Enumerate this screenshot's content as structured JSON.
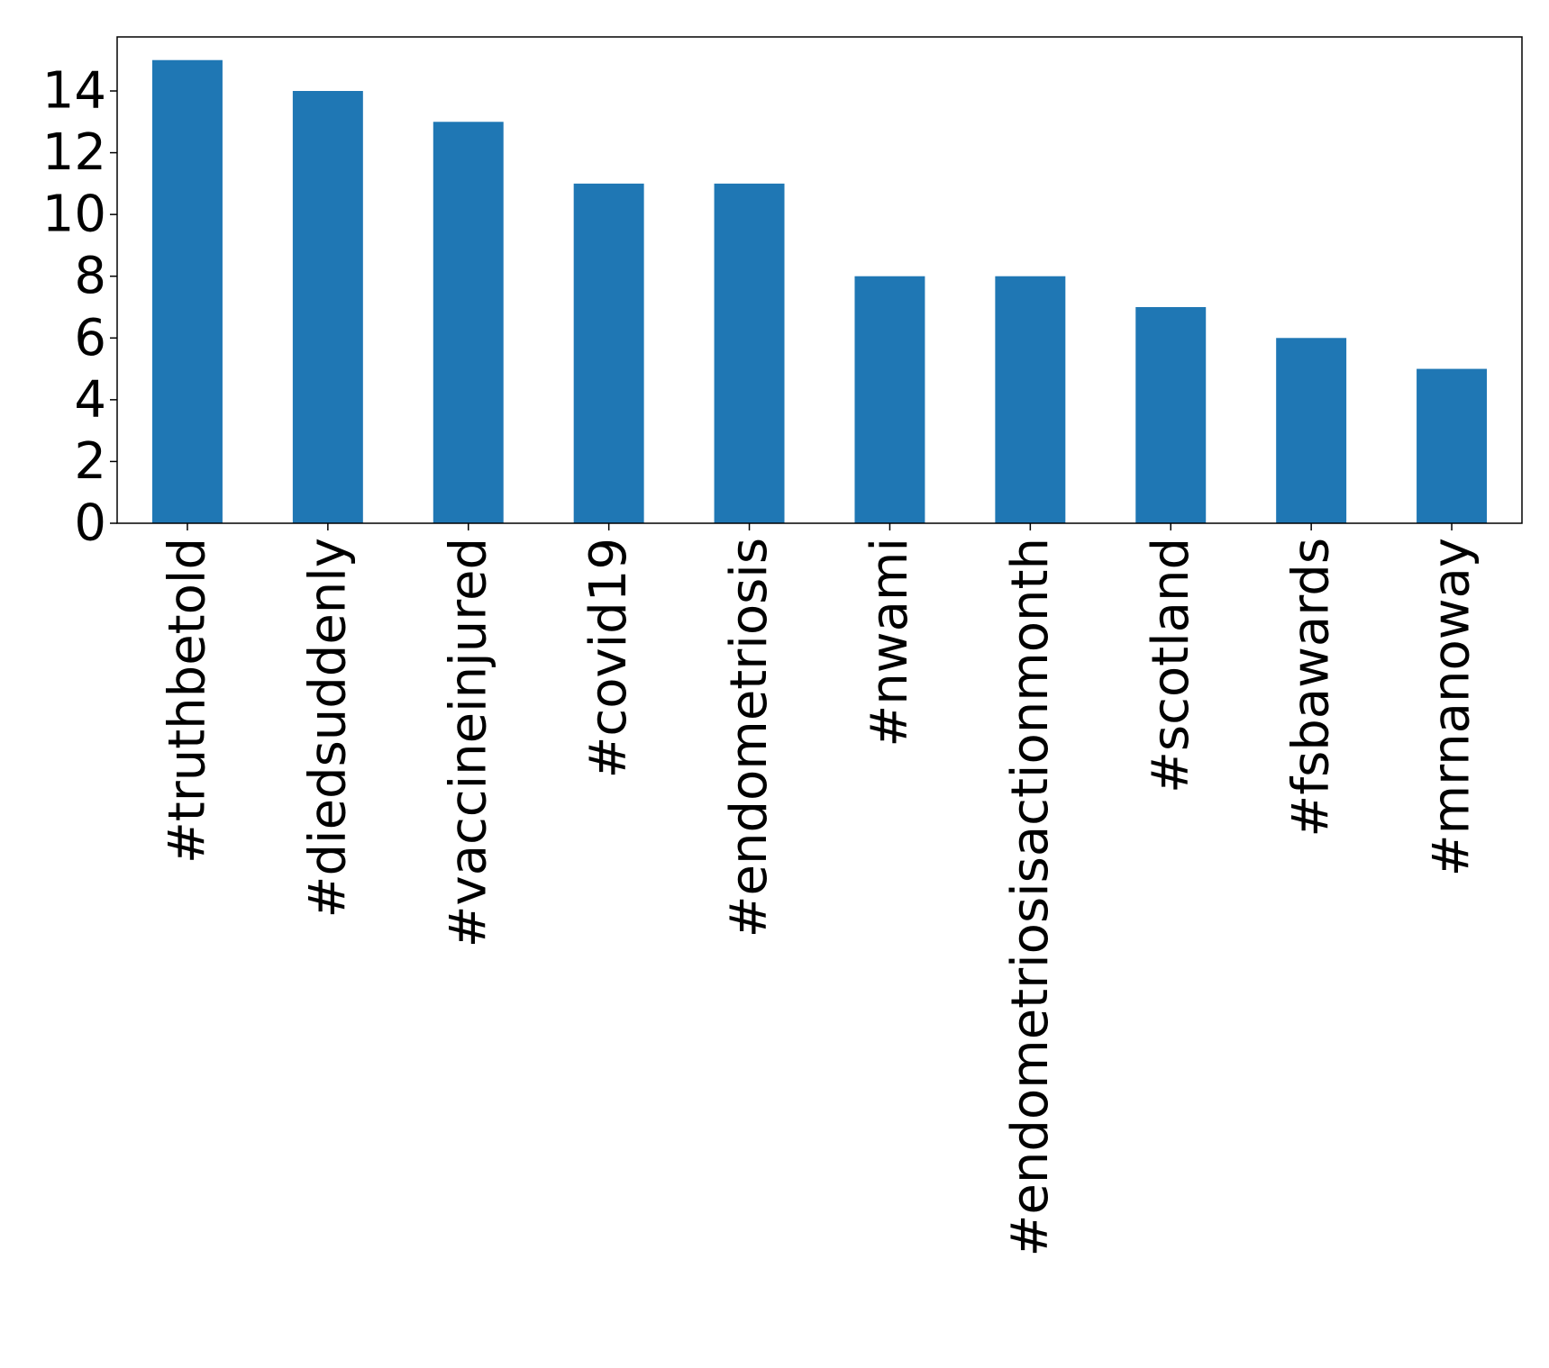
{
  "chart_data": {
    "type": "bar",
    "title": "",
    "xlabel": "",
    "ylabel": "",
    "categories": [
      "#truthbetold",
      "#diedsuddenly",
      "#vaccineinjured",
      "#covid19",
      "#endometriosis",
      "#nwami",
      "#endometriosisactionmonth",
      "#scotland",
      "#fsbawards",
      "#mrnanoway"
    ],
    "values": [
      15,
      14,
      13,
      11,
      11,
      8,
      8,
      7,
      6,
      5
    ],
    "ylim": [
      0,
      15.75
    ],
    "yticks": [
      0,
      2,
      4,
      6,
      8,
      10,
      12,
      14
    ],
    "bar_color": "#1f77b4",
    "grid": false,
    "legend": "none",
    "x_tick_rotation": "vertical"
  }
}
